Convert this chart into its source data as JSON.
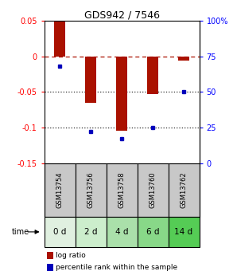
{
  "title": "GDS942 / 7546",
  "samples": [
    "GSM13754",
    "GSM13756",
    "GSM13758",
    "GSM13760",
    "GSM13762"
  ],
  "time_labels": [
    "0 d",
    "2 d",
    "4 d",
    "6 d",
    "14 d"
  ],
  "log_ratios": [
    0.049,
    -0.065,
    -0.105,
    -0.053,
    -0.006
  ],
  "percentile_ranks": [
    68,
    22,
    17,
    25,
    50
  ],
  "bar_color": "#aa1100",
  "dot_color": "#0000bb",
  "ylim": [
    -0.15,
    0.05
  ],
  "right_ylim": [
    0,
    100
  ],
  "yticks_left": [
    0.05,
    0,
    -0.05,
    -0.1,
    -0.15
  ],
  "yticks_left_labels": [
    "0.05",
    "0",
    "-0.05",
    "-0.1",
    "-0.15"
  ],
  "yticks_right": [
    100,
    75,
    50,
    25,
    0
  ],
  "yticks_right_labels": [
    "100%",
    "75",
    "50",
    "25",
    "0"
  ],
  "hlines_dotted": [
    -0.05,
    -0.1
  ],
  "gsm_bg_color": "#c8c8c8",
  "time_bg_colors": [
    "#e0f0e0",
    "#cceecc",
    "#aae0aa",
    "#88d888",
    "#55cc55"
  ],
  "legend_bar_label": "log ratio",
  "legend_dot_label": "percentile rank within the sample",
  "bar_width": 0.35,
  "title_fontsize": 9,
  "tick_fontsize": 7,
  "gsm_fontsize": 6,
  "time_fontsize": 7.5,
  "legend_fontsize": 6.5
}
